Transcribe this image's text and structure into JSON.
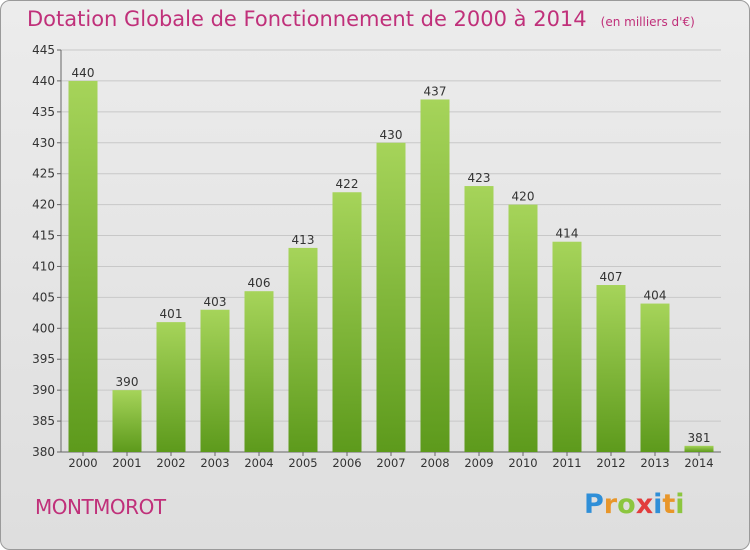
{
  "header": {
    "title": "Dotation Globale de Fonctionnement de 2000 à 2014",
    "subtitle": "(en milliers d'€)"
  },
  "footer": {
    "town": "MONTMOROT",
    "logo": "Proxiti"
  },
  "colors": {
    "title": "#c0307a",
    "bar_top": "#a6d45a",
    "bar_bottom": "#5d9a1c",
    "grid": "#c8c8c8"
  },
  "chart_data": {
    "type": "bar",
    "title": "Dotation Globale de Fonctionnement de 2000 à 2014",
    "subtitle": "(en milliers d'€)",
    "xlabel": "",
    "ylabel": "",
    "categories": [
      "2000",
      "2001",
      "2002",
      "2003",
      "2004",
      "2005",
      "2006",
      "2007",
      "2008",
      "2009",
      "2010",
      "2011",
      "2012",
      "2013",
      "2014"
    ],
    "values": [
      440,
      390,
      401,
      403,
      406,
      413,
      422,
      430,
      437,
      423,
      420,
      414,
      407,
      404,
      381
    ],
    "ylim": [
      380,
      445
    ],
    "yticks": [
      380,
      385,
      390,
      395,
      400,
      405,
      410,
      415,
      420,
      425,
      430,
      435,
      440,
      445
    ],
    "grid": true,
    "data_labels": true
  }
}
